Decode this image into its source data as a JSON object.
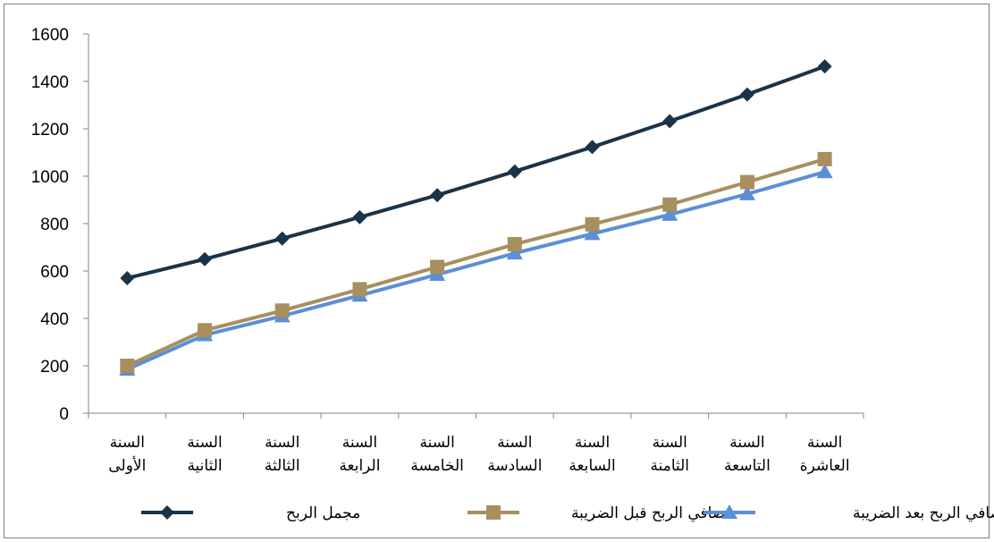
{
  "chart_data": {
    "type": "line",
    "title": "",
    "xlabel": "",
    "ylabel": "",
    "ylim": [
      0,
      1600
    ],
    "yticks": [
      0,
      200,
      400,
      600,
      800,
      1000,
      1200,
      1400,
      1600
    ],
    "categories": [
      [
        "السنة",
        "الأولى"
      ],
      [
        "السنة",
        "الثانية"
      ],
      [
        "السنة",
        "الثالثة"
      ],
      [
        "السنة",
        "الرابعة"
      ],
      [
        "السنة",
        "الخامسة"
      ],
      [
        "السنة",
        "السادسة"
      ],
      [
        "السنة",
        "السابعة"
      ],
      [
        "السنة",
        "الثامنة"
      ],
      [
        "السنة",
        "التاسعة"
      ],
      [
        "السنة",
        "العاشرة"
      ]
    ],
    "series": [
      {
        "name": "مجمل الربح",
        "color": "#1b3347",
        "marker": "diamond",
        "values": [
          570,
          650,
          737,
          827,
          920,
          1020,
          1123,
          1232,
          1345,
          1463
        ]
      },
      {
        "name": "صافي الربح قبل الضريبة",
        "color": "#a88f5e",
        "marker": "square",
        "values": [
          200,
          350,
          433,
          523,
          617,
          713,
          797,
          880,
          975,
          1072
        ]
      },
      {
        "name": "صافي الربح بعد الضريبة",
        "color": "#5b8fd6",
        "marker": "triangle",
        "values": [
          185,
          330,
          410,
          497,
          585,
          675,
          757,
          838,
          925,
          1018
        ]
      }
    ],
    "grid": false,
    "legend_position": "bottom"
  }
}
